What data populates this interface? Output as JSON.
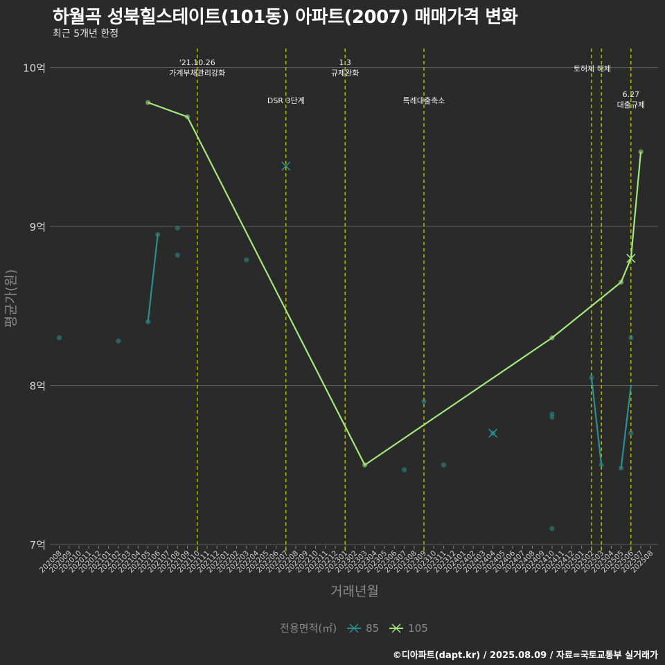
{
  "header": {
    "title": "하월곡 성북힐스테이트(101동) 아파트(2007) 매매가격 변화",
    "subtitle": "최근 5개년 한정"
  },
  "footer": {
    "caption": "©디아파트(dapt.kr) / 2025.08.09 / 자료=국토교통부 실거래가"
  },
  "legend": {
    "title": "전용면적(㎡)",
    "items": [
      {
        "label": "85",
        "color": "#2a8f8f"
      },
      {
        "label": "105",
        "color": "#a3e87c"
      }
    ]
  },
  "chart_data": {
    "type": "line",
    "title": "하월곡 성북힐스테이트(101동) 아파트(2007) 매매가격 변화",
    "xlabel": "거래년월",
    "ylabel": "평균가(원)",
    "ylim": [
      6.95,
      10.2
    ],
    "yticks": [
      {
        "value": 7,
        "label": "7억"
      },
      {
        "value": 8,
        "label": "8억"
      },
      {
        "value": 9,
        "label": "9억"
      },
      {
        "value": 10,
        "label": "10억"
      }
    ],
    "categories": [
      "202008",
      "202009",
      "202010",
      "202011",
      "202012",
      "202101",
      "202102",
      "202103",
      "202104",
      "202105",
      "202106",
      "202107",
      "202108",
      "202109",
      "202110",
      "202111",
      "202112",
      "202201",
      "202202",
      "202203",
      "202204",
      "202205",
      "202206",
      "202207",
      "202208",
      "202209",
      "202210",
      "202211",
      "202212",
      "202301",
      "202302",
      "202303",
      "202304",
      "202305",
      "202306",
      "202307",
      "202308",
      "202309",
      "202310",
      "202311",
      "202312",
      "202401",
      "202402",
      "202403",
      "202404",
      "202405",
      "202406",
      "202407",
      "202408",
      "202409",
      "202410",
      "202411",
      "202412",
      "202501",
      "202502",
      "202503",
      "202504",
      "202505",
      "202506",
      "202507",
      "202508"
    ],
    "events": [
      {
        "month": "202110",
        "label": "'21.10.26\n가계부채관리강화",
        "level": "top"
      },
      {
        "month": "202207",
        "label": "DSR 3단계",
        "level": "mid"
      },
      {
        "month": "202301",
        "label": "1.3\n규제완화",
        "level": "top"
      },
      {
        "month": "202309",
        "label": "특례대출축소",
        "level": "mid"
      },
      {
        "month": "202502",
        "label": "토허제 해제",
        "level": "top"
      },
      {
        "month": "202503",
        "label": "",
        "level": "top"
      },
      {
        "month": "202506",
        "label": "6.27\n대출규제",
        "level": "low"
      }
    ],
    "series": [
      {
        "name": "85",
        "color": "#2a8f8f",
        "line": [
          {
            "x": "202105",
            "y": 8.4
          },
          {
            "x": "202106",
            "y": 8.95
          },
          {
            "x": "202502",
            "y": 8.05
          },
          {
            "x": "202503",
            "y": 7.5
          },
          {
            "x": "202505",
            "y": 7.48
          },
          {
            "x": "202506",
            "y": 8.0
          }
        ],
        "segments": [
          [
            0,
            1
          ],
          [
            2,
            3
          ],
          [
            4,
            5
          ]
        ],
        "points": [
          {
            "x": "202008",
            "y": 8.3
          },
          {
            "x": "202102",
            "y": 8.28
          },
          {
            "x": "202105",
            "y": 8.4
          },
          {
            "x": "202106",
            "y": 8.95
          },
          {
            "x": "202108",
            "y": 8.82
          },
          {
            "x": "202108",
            "y": 8.99
          },
          {
            "x": "202203",
            "y": 8.79
          },
          {
            "x": "202307",
            "y": 7.47
          },
          {
            "x": "202309",
            "y": 7.9
          },
          {
            "x": "202311",
            "y": 7.5
          },
          {
            "x": "202404",
            "y": 7.7
          },
          {
            "x": "202410",
            "y": 7.82
          },
          {
            "x": "202410",
            "y": 7.8
          },
          {
            "x": "202410",
            "y": 7.1
          },
          {
            "x": "202502",
            "y": 8.05
          },
          {
            "x": "202503",
            "y": 7.5
          },
          {
            "x": "202505",
            "y": 7.48
          },
          {
            "x": "202506",
            "y": 8.3
          },
          {
            "x": "202506",
            "y": 7.7
          }
        ],
        "mean_markers": [
          {
            "x": "202207",
            "y": 9.38
          },
          {
            "x": "202404",
            "y": 7.7
          }
        ]
      },
      {
        "name": "105",
        "color": "#a3e87c",
        "line": [
          {
            "x": "202105",
            "y": 9.78
          },
          {
            "x": "202109",
            "y": 9.69
          },
          {
            "x": "202303",
            "y": 7.5
          },
          {
            "x": "202410",
            "y": 8.3
          },
          {
            "x": "202505",
            "y": 8.65
          },
          {
            "x": "202506",
            "y": 8.8
          },
          {
            "x": "202507",
            "y": 9.47
          }
        ],
        "points": [
          {
            "x": "202105",
            "y": 9.78
          },
          {
            "x": "202109",
            "y": 9.69
          },
          {
            "x": "202303",
            "y": 7.5
          },
          {
            "x": "202410",
            "y": 8.3
          },
          {
            "x": "202505",
            "y": 8.65
          },
          {
            "x": "202507",
            "y": 9.47
          }
        ],
        "mean_markers": [
          {
            "x": "202506",
            "y": 8.8
          }
        ]
      }
    ]
  }
}
